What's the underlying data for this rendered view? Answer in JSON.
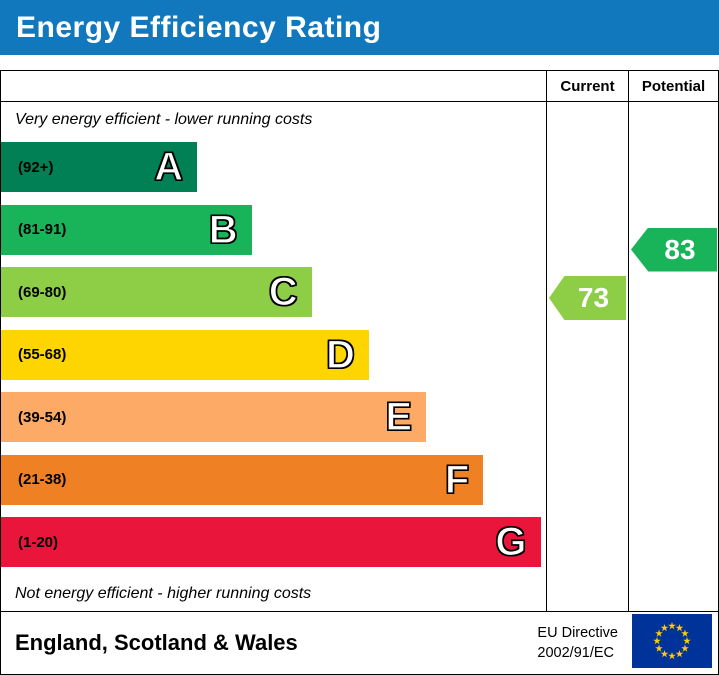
{
  "title": "Energy Efficiency Rating",
  "columns": {
    "current": "Current",
    "potential": "Potential"
  },
  "top_note": "Very energy efficient - lower running costs",
  "bottom_note": "Not energy efficient - higher running costs",
  "footer": {
    "region": "England, Scotland & Wales",
    "directive_line1": "EU Directive",
    "directive_line2": "2002/91/EC"
  },
  "colors": {
    "header_bg": "#1278be",
    "header_text": "#ffffff",
    "eu_flag_bg": "#003399",
    "eu_flag_star": "#ffcc00"
  },
  "chart_data": {
    "type": "bar",
    "title": "Energy Efficiency Rating",
    "orientation": "horizontal",
    "bands": [
      {
        "letter": "A",
        "range": "(92+)",
        "min": 92,
        "max": 100,
        "color": "#008054",
        "width_pct": 36
      },
      {
        "letter": "B",
        "range": "(81-91)",
        "min": 81,
        "max": 91,
        "color": "#19b459",
        "width_pct": 46
      },
      {
        "letter": "C",
        "range": "(69-80)",
        "min": 69,
        "max": 80,
        "color": "#8dce46",
        "width_pct": 57
      },
      {
        "letter": "D",
        "range": "(55-68)",
        "min": 55,
        "max": 68,
        "color": "#ffd500",
        "width_pct": 67.5
      },
      {
        "letter": "E",
        "range": "(39-54)",
        "min": 39,
        "max": 54,
        "color": "#fcaa65",
        "width_pct": 78
      },
      {
        "letter": "F",
        "range": "(21-38)",
        "min": 21,
        "max": 38,
        "color": "#ef8023",
        "width_pct": 88.5
      },
      {
        "letter": "G",
        "range": "(1-20)",
        "min": 1,
        "max": 20,
        "color": "#e9153b",
        "width_pct": 99
      }
    ],
    "current": {
      "value": 73,
      "band": "C",
      "color": "#8dce46"
    },
    "potential": {
      "value": 83,
      "band": "B",
      "color": "#19b459"
    }
  }
}
